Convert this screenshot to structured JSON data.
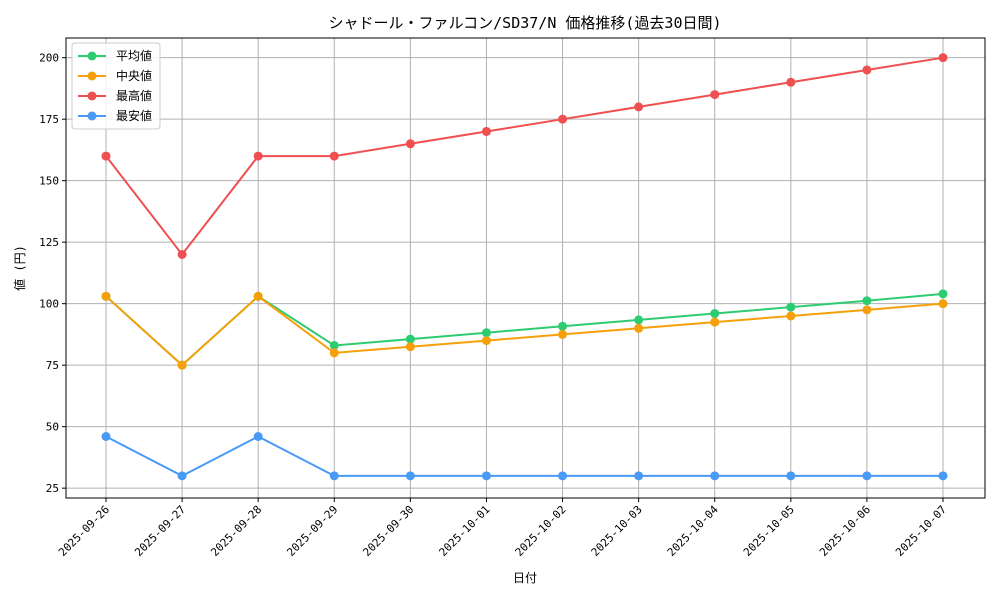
{
  "chart_data": {
    "type": "line",
    "title": "シャドール・ファルコン/SD37/N 価格推移(過去30日間)",
    "xlabel": "日付",
    "ylabel": "値 (円)",
    "categories": [
      "2025-09-26",
      "2025-09-27",
      "2025-09-28",
      "2025-09-29",
      "2025-09-30",
      "2025-10-01",
      "2025-10-02",
      "2025-10-03",
      "2025-10-04",
      "2025-10-05",
      "2025-10-06",
      "2025-10-07"
    ],
    "ylim": [
      21,
      208
    ],
    "yticks": [
      25,
      50,
      75,
      100,
      125,
      150,
      175,
      200
    ],
    "grid": true,
    "legend_position": "top-left",
    "series": [
      {
        "name": "平均値",
        "color": "#2ecc71",
        "values": [
          103,
          75,
          103,
          83,
          85.6,
          88.2,
          90.8,
          93.4,
          96,
          98.6,
          101.2,
          104
        ]
      },
      {
        "name": "中央値",
        "color": "#f5a00a",
        "values": [
          103,
          75,
          103,
          80,
          82.5,
          85,
          87.5,
          90,
          92.5,
          95,
          97.5,
          100
        ]
      },
      {
        "name": "最高値",
        "color": "#ef4f4f",
        "values": [
          160,
          120,
          160,
          160,
          165,
          170,
          175,
          180,
          185,
          190,
          195,
          200
        ]
      },
      {
        "name": "最安値",
        "color": "#4a9af5",
        "values": [
          46,
          30,
          46,
          30,
          30,
          30,
          30,
          30,
          30,
          30,
          30,
          30
        ]
      }
    ]
  }
}
